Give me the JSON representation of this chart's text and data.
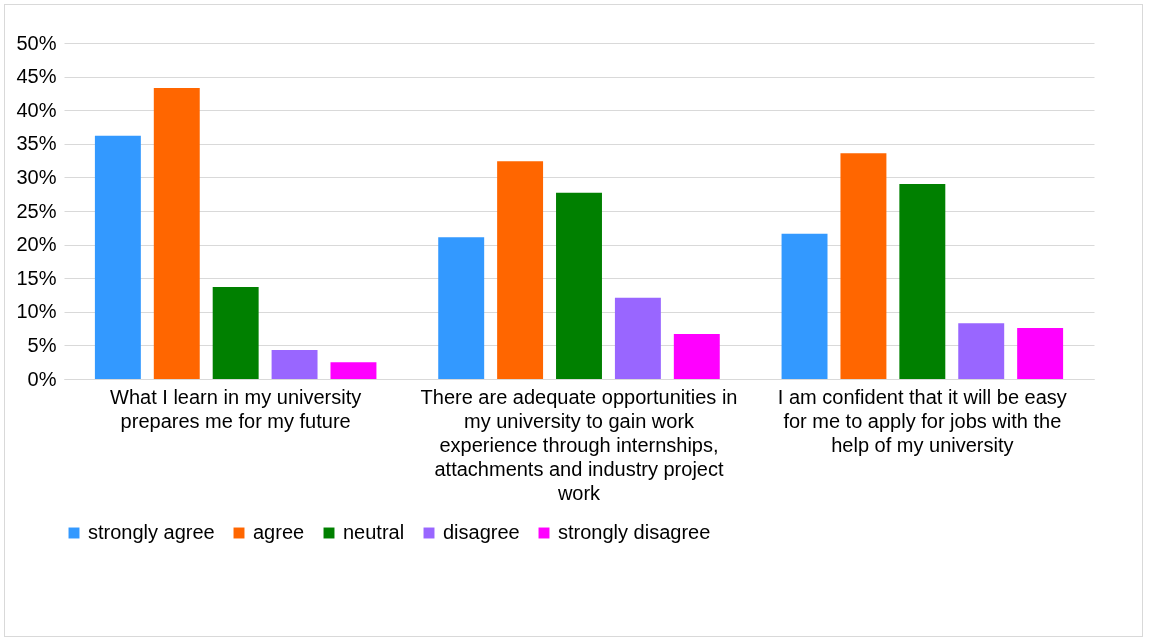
{
  "chart_data": {
    "type": "bar",
    "categories": [
      "What I learn in my university prepares me for my future",
      "There are adequate opportunities in my university to gain work experience through internships, attachments and industry project work",
      "I am confident that it will be easy for me to apply for jobs with the help of my university"
    ],
    "series": [
      {
        "name": "strongly agree",
        "color": "#3399ff",
        "values": [
          36.2,
          21.1,
          21.6
        ]
      },
      {
        "name": "agree",
        "color": "#ff6600",
        "values": [
          43.3,
          32.4,
          33.6
        ]
      },
      {
        "name": "neutral",
        "color": "#008000",
        "values": [
          13.7,
          27.7,
          29.0
        ]
      },
      {
        "name": "disagree",
        "color": "#9966ff",
        "values": [
          4.3,
          12.1,
          8.3
        ]
      },
      {
        "name": "strongly disagree",
        "color": "#ff00ff",
        "values": [
          2.5,
          6.7,
          7.6
        ]
      }
    ],
    "ylim": [
      0,
      50
    ],
    "yticks": [
      {
        "value": 0,
        "label": "0%"
      },
      {
        "value": 5,
        "label": "5%"
      },
      {
        "value": 10,
        "label": "10%"
      },
      {
        "value": 15,
        "label": "15%"
      },
      {
        "value": 20,
        "label": "20%"
      },
      {
        "value": 25,
        "label": "25%"
      },
      {
        "value": 30,
        "label": "30%"
      },
      {
        "value": 35,
        "label": "35%"
      },
      {
        "value": 40,
        "label": "40%"
      },
      {
        "value": 45,
        "label": "45%"
      },
      {
        "value": 50,
        "label": "50%"
      }
    ],
    "grid": "y",
    "legend": "bottom"
  }
}
